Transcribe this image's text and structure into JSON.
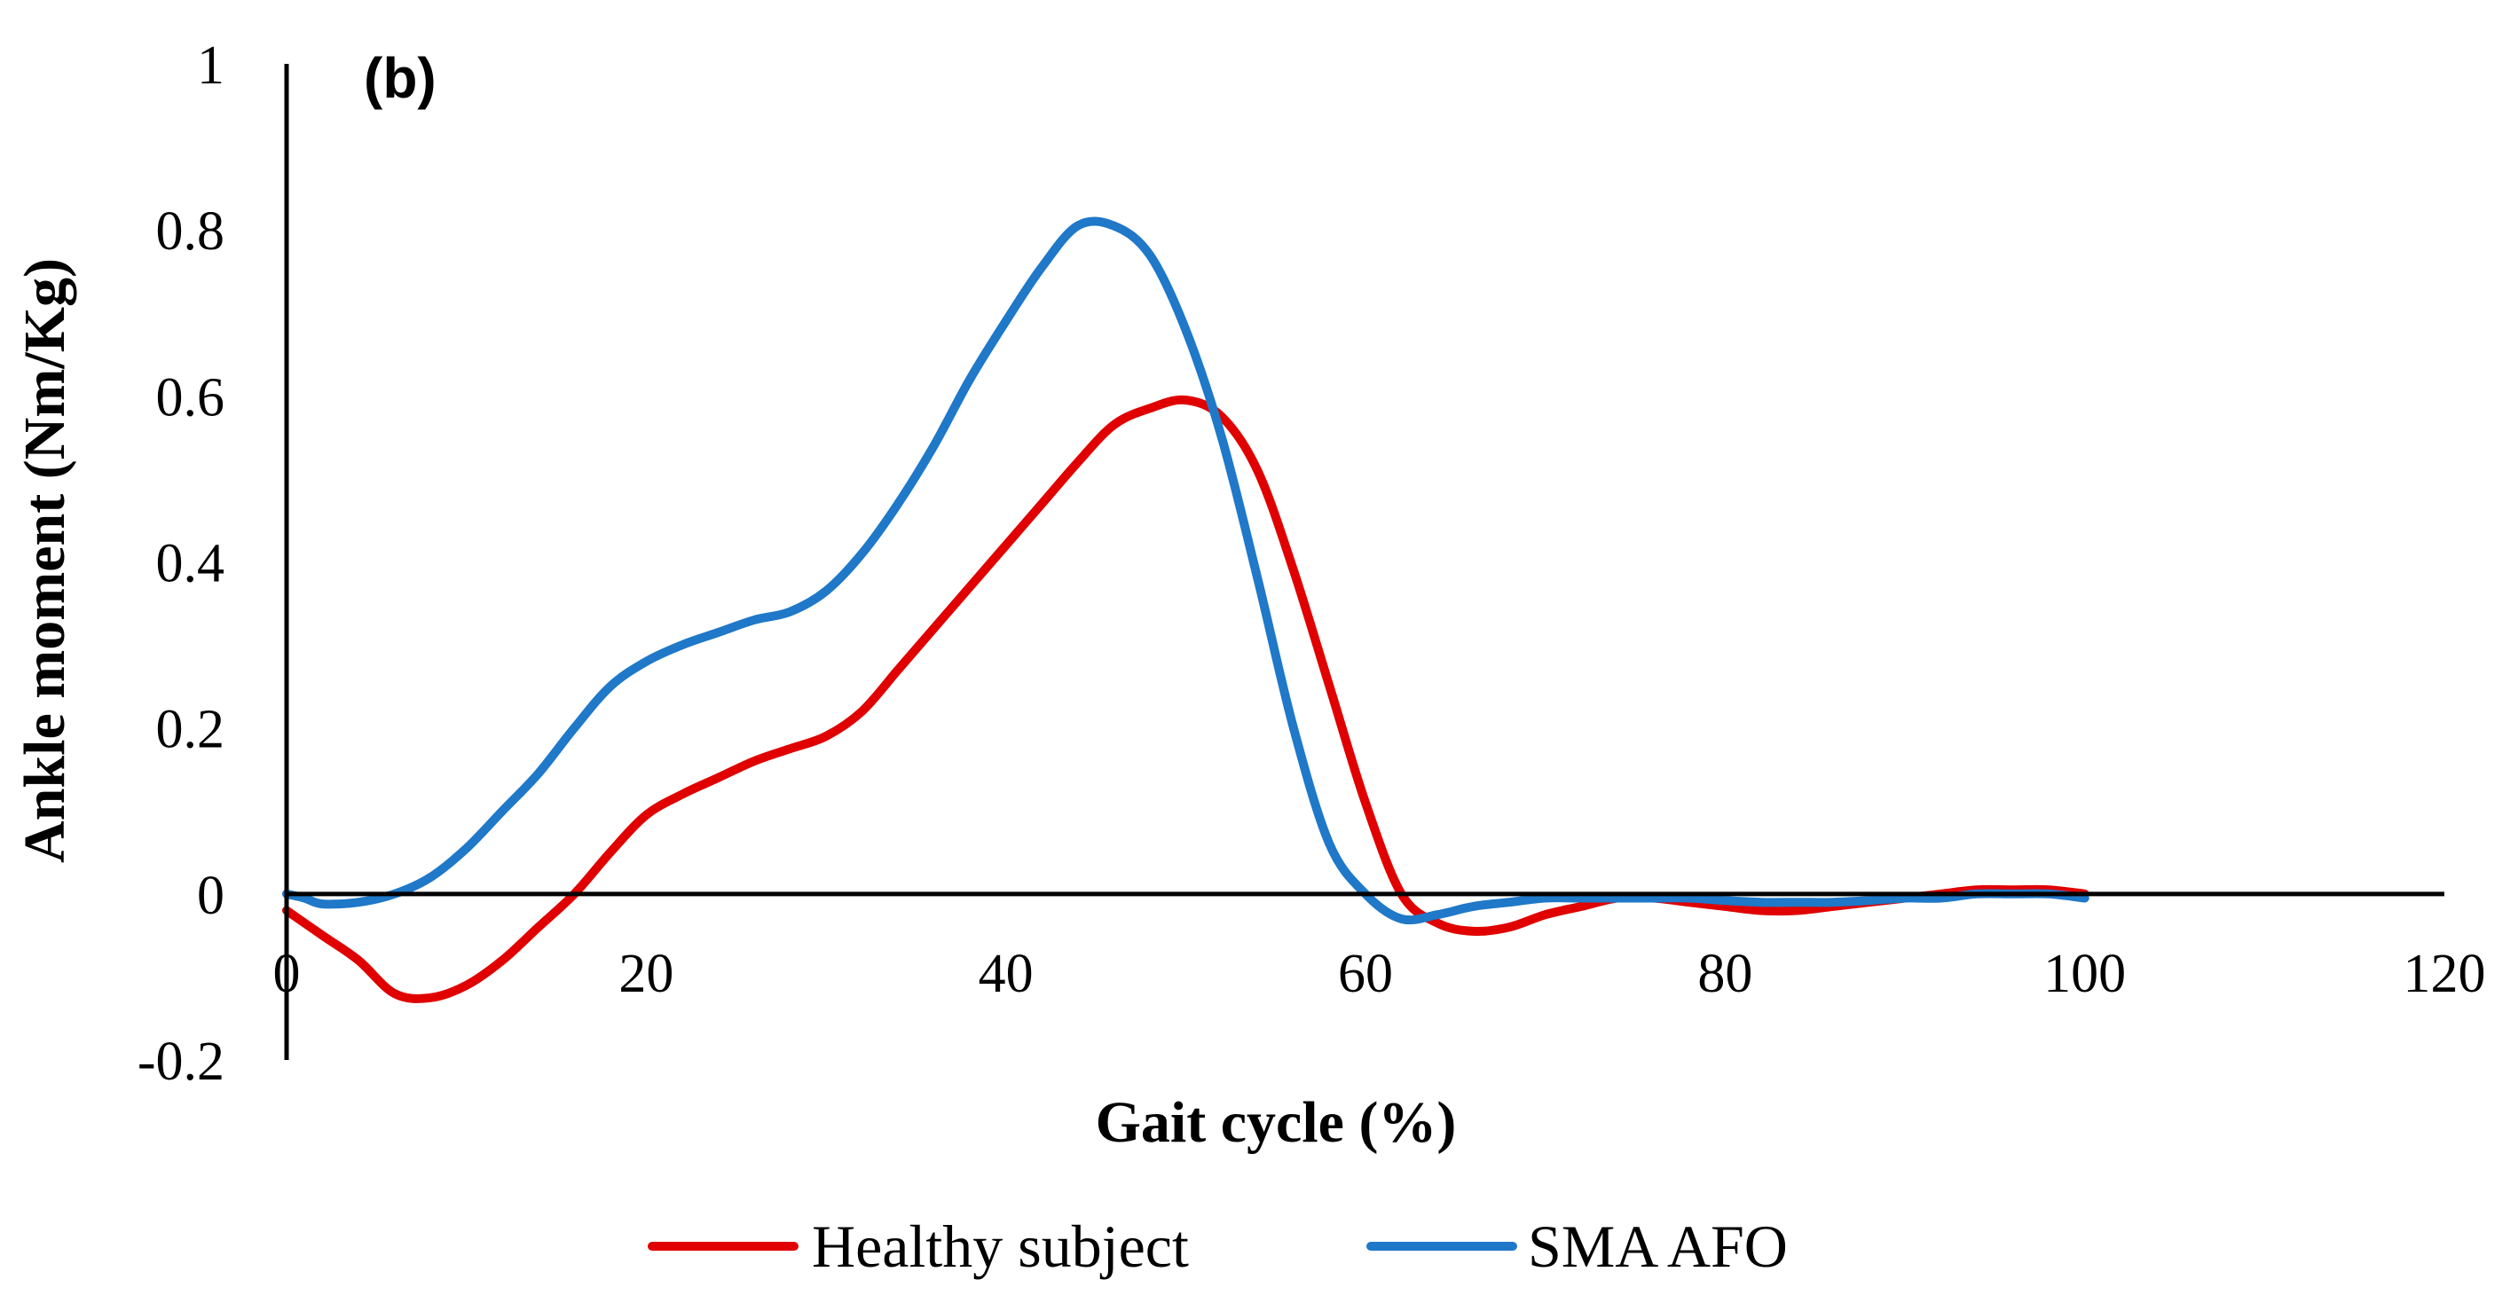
{
  "chart_data": {
    "type": "line",
    "panel_label": "(b)",
    "xlabel": "Gait cycle (%)",
    "ylabel": "Ankle moment (Nm/Kg)",
    "xlim": [
      0,
      120
    ],
    "ylim": [
      -0.2,
      1
    ],
    "x_ticks": [
      "0",
      "20",
      "40",
      "60",
      "80",
      "100",
      "120"
    ],
    "y_ticks": [
      "-0.2",
      "0",
      "0.2",
      "0.4",
      "0.6",
      "0.8",
      "1"
    ],
    "grid": false,
    "legend_position": "bottom",
    "series": [
      {
        "name": "Healthy subject",
        "color": "#e00000",
        "x": [
          0,
          2,
          4,
          6,
          8,
          10,
          12,
          14,
          16,
          18,
          20,
          22,
          24,
          26,
          28,
          30,
          32,
          34,
          36,
          38,
          40,
          42,
          44,
          46,
          48,
          50,
          52,
          54,
          56,
          58,
          60,
          62,
          64,
          66,
          68,
          70,
          72,
          74,
          76,
          78,
          80,
          82,
          84,
          86,
          88,
          90,
          92,
          94,
          96,
          98,
          100
        ],
        "y": [
          -0.02,
          -0.05,
          -0.08,
          -0.12,
          -0.125,
          -0.11,
          -0.08,
          -0.04,
          0.0,
          0.05,
          0.095,
          0.12,
          0.14,
          0.16,
          0.175,
          0.19,
          0.22,
          0.27,
          0.32,
          0.37,
          0.42,
          0.47,
          0.52,
          0.565,
          0.585,
          0.595,
          0.575,
          0.51,
          0.39,
          0.25,
          0.11,
          0.0,
          -0.035,
          -0.045,
          -0.04,
          -0.025,
          -0.015,
          -0.005,
          -0.005,
          -0.01,
          -0.015,
          -0.02,
          -0.02,
          -0.015,
          -0.01,
          -0.005,
          0.0,
          0.005,
          0.005,
          0.005,
          0.0
        ]
      },
      {
        "name": "SMA AFO",
        "color": "#1f78c8",
        "x": [
          0,
          1,
          2,
          4,
          6,
          8,
          10,
          12,
          14,
          16,
          18,
          20,
          22,
          24,
          26,
          28,
          30,
          32,
          34,
          36,
          38,
          40,
          42,
          44,
          46,
          48,
          50,
          52,
          54,
          56,
          58,
          60,
          62,
          64,
          66,
          68,
          70,
          72,
          74,
          76,
          78,
          80,
          82,
          84,
          86,
          88,
          90,
          92,
          94,
          96,
          98,
          100
        ],
        "y": [
          0.0,
          -0.005,
          -0.012,
          -0.01,
          0.0,
          0.02,
          0.055,
          0.1,
          0.145,
          0.2,
          0.25,
          0.28,
          0.3,
          0.315,
          0.33,
          0.34,
          0.365,
          0.41,
          0.47,
          0.54,
          0.62,
          0.69,
          0.755,
          0.805,
          0.805,
          0.77,
          0.68,
          0.55,
          0.38,
          0.2,
          0.06,
          0.0,
          -0.03,
          -0.025,
          -0.015,
          -0.01,
          -0.005,
          -0.005,
          -0.005,
          -0.005,
          -0.005,
          -0.008,
          -0.01,
          -0.01,
          -0.01,
          -0.008,
          -0.005,
          -0.005,
          0.0,
          0.0,
          0.0,
          -0.005
        ]
      }
    ]
  }
}
